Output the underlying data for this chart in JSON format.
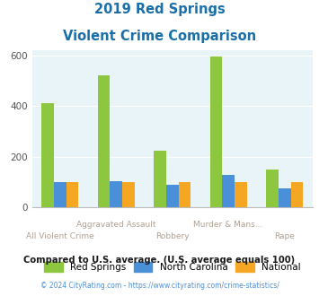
{
  "title_line1": "2019 Red Springs",
  "title_line2": "Violent Crime Comparison",
  "categories": [
    "All Violent Crime",
    "Aggravated Assault",
    "Robbery",
    "Murder & Mans...",
    "Rape"
  ],
  "top_labels": [
    "",
    "Aggravated Assault",
    "",
    "Murder & Mans...",
    ""
  ],
  "bottom_labels": [
    "All Violent Crime",
    "",
    "Robbery",
    "",
    "Rape"
  ],
  "red_springs": [
    410,
    520,
    225,
    597,
    148
  ],
  "north_carolina": [
    100,
    103,
    90,
    127,
    75
  ],
  "national": [
    100,
    100,
    100,
    100,
    100
  ],
  "colors": {
    "red_springs": "#8dc63f",
    "north_carolina": "#4a90d9",
    "national": "#f5a623"
  },
  "ylim": [
    0,
    620
  ],
  "yticks": [
    0,
    200,
    400,
    600
  ],
  "background_color": "#e8f4f8",
  "title_color": "#1a6fa8",
  "xlabel_color": "#b0a090",
  "legend_labels": [
    "Red Springs",
    "North Carolina",
    "National"
  ],
  "footer_text": "Compared to U.S. average. (U.S. average equals 100)",
  "copyright_text": "© 2024 CityRating.com - https://www.cityrating.com/crime-statistics/",
  "footer_color": "#1a1a1a",
  "copyright_color": "#4a90d9",
  "bar_width": 0.22
}
